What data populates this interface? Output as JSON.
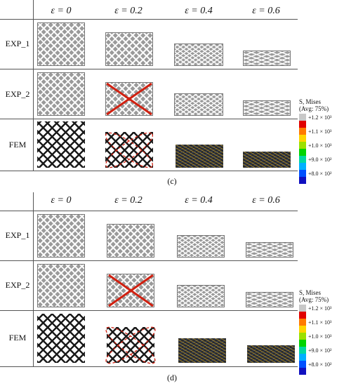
{
  "panel_c": {
    "headers": [
      "ε = 0",
      "ε = 0.2",
      "ε = 0.4",
      "ε = 0.6"
    ],
    "rows": [
      "EXP_1",
      "EXP_2",
      "FEM"
    ],
    "caption": "(c)",
    "legend": {
      "title_line1": "S, Mises",
      "title_line2": "(Avg: 75%)",
      "ticks": [
        "+1.2 × 10³",
        "+1.1 × 10³",
        "+1.0 × 10³",
        "+9.0 × 10²",
        "+8.0 × 10²"
      ],
      "colors": [
        "#c8c8c8",
        "#e00000",
        "#ff7a00",
        "#ffd400",
        "#9be000",
        "#00d400",
        "#00d8a0",
        "#00b0ff",
        "#0050ff",
        "#1010c0"
      ]
    }
  },
  "panel_d": {
    "headers": [
      "ε = 0",
      "ε = 0.2",
      "ε = 0.4",
      "ε = 0.6"
    ],
    "rows": [
      "EXP_1",
      "EXP_2",
      "FEM"
    ],
    "caption": "(d)",
    "legend": {
      "title_line1": "S, Mises",
      "title_line2": "(Avg: 75%)",
      "ticks": [
        "+1.2 × 10³",
        "+1.1 × 10³",
        "+1.0 × 10³",
        "+9.0 × 10²",
        "+8.0 × 10²"
      ],
      "colors": [
        "#c8c8c8",
        "#e00000",
        "#ff7a00",
        "#ffd400",
        "#9be000",
        "#00d400",
        "#00d8a0",
        "#00b0ff",
        "#0050ff",
        "#1010c0"
      ]
    }
  }
}
